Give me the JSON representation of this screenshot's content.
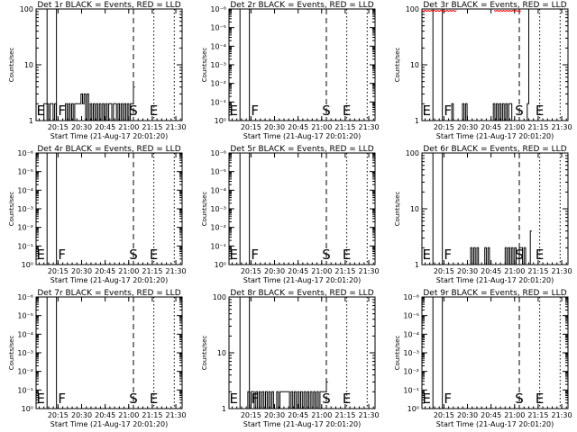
{
  "figure": {
    "background": "#ffffff",
    "event_color": "#000000",
    "lld_color": "#ff0000"
  },
  "chart_data": [
    {
      "type": "line",
      "title": "Det 1r BLACK = Events, RED = LLD",
      "xlabel": "Start Time (21-Aug-17 20:01:20)",
      "ylabel": "Counts/sec",
      "x_tick_labels": [
        "20:15",
        "20:30",
        "20:45",
        "21:00",
        "21:15",
        "21:30"
      ],
      "y_scale": "log",
      "y_tick_labels": [
        "1",
        "10",
        "100"
      ],
      "ylim": [
        1,
        100
      ],
      "markers": [
        "E",
        "F",
        "S",
        "E"
      ],
      "series": [
        {
          "role": "events",
          "color": "#000000",
          "minutes": [
            3,
            63
          ],
          "y": [
            1,
            1,
            2,
            2,
            2,
            1,
            2,
            2,
            1,
            2,
            1,
            1,
            1,
            1,
            1,
            1,
            2,
            1,
            2,
            1,
            2,
            1,
            2,
            2,
            2,
            2,
            3,
            2,
            3,
            1,
            3,
            1,
            2,
            1,
            2,
            1,
            2,
            1,
            2,
            1,
            2,
            1,
            2,
            1,
            2,
            2,
            1,
            2,
            2,
            1,
            2,
            1,
            2,
            1,
            2,
            1,
            2,
            1,
            2,
            2,
            4
          ]
        }
      ]
    },
    {
      "type": "line",
      "title": "Det 2r BLACK = Events, RED = LLD",
      "xlabel": "Start Time (21-Aug-17 20:01:20)",
      "ylabel": "Counts/sec",
      "x_tick_labels": [
        "20:15",
        "20:30",
        "20:45",
        "21:00",
        "21:15",
        "21:30"
      ],
      "y_scale": "log",
      "y_tick_labels": [
        "10⁰",
        "10⁻¹",
        "10⁻²",
        "10⁻³",
        "10⁻⁴",
        "10⁻⁵",
        "10⁻⁶"
      ],
      "ylim": [
        1,
        1000000
      ],
      "markers": [
        "E",
        "F",
        "S",
        "E"
      ],
      "series": []
    },
    {
      "type": "line",
      "title": "Det 3r BLACK = Events, RED = LLD",
      "xlabel": "Start Time (21-Aug-17 20:01:20)",
      "ylabel": "Counts/sec",
      "x_tick_labels": [
        "20:15",
        "20:30",
        "20:45",
        "21:00",
        "21:15",
        "21:30"
      ],
      "y_scale": "log",
      "y_tick_labels": [
        "1",
        "10",
        "100"
      ],
      "ylim": [
        1,
        100
      ],
      "markers": [
        "E",
        "F",
        "S",
        "E"
      ],
      "series": [
        {
          "role": "events",
          "color": "#000000",
          "minutes": [
            18,
            69
          ],
          "y": [
            1,
            2,
            1,
            1,
            1,
            1,
            1,
            1,
            2,
            1,
            2,
            1,
            1,
            1,
            1,
            1,
            1,
            1,
            1,
            1,
            1,
            1,
            1,
            1,
            1,
            1,
            1,
            1,
            2,
            1,
            2,
            1,
            2,
            1,
            2,
            1,
            2,
            1,
            2,
            2,
            1,
            1,
            1,
            1,
            1,
            1,
            1,
            1,
            1,
            1,
            2,
            100
          ]
        },
        {
          "role": "lld",
          "color": "#ff0000",
          "minutes": [
            0,
            22
          ],
          "level": 100
        },
        {
          "role": "lld",
          "color": "#ff0000",
          "minutes": [
            46,
            63
          ],
          "level": 100
        }
      ]
    },
    {
      "type": "line",
      "title": "Det 4r BLACK = Events, RED = LLD",
      "xlabel": "Start Time (21-Aug-17 20:01:20)",
      "ylabel": "Counts/sec",
      "x_tick_labels": [
        "20:15",
        "20:30",
        "20:45",
        "21:00",
        "21:15",
        "21:30"
      ],
      "y_scale": "log",
      "y_tick_labels": [
        "10⁰",
        "10⁻¹",
        "10⁻²",
        "10⁻³",
        "10⁻⁴",
        "10⁻⁵",
        "10⁻⁶"
      ],
      "ylim": [
        1,
        1000000
      ],
      "markers": [
        "E",
        "F",
        "S",
        "E"
      ],
      "series": []
    },
    {
      "type": "line",
      "title": "Det 5r BLACK = Events, RED = LLD",
      "xlabel": "Start Time (21-Aug-17 20:01:20)",
      "ylabel": "Counts/sec",
      "x_tick_labels": [
        "20:15",
        "20:30",
        "20:45",
        "21:00",
        "21:15",
        "21:30"
      ],
      "y_scale": "log",
      "y_tick_labels": [
        "10⁰",
        "10⁻¹",
        "10⁻²",
        "10⁻³",
        "10⁻⁴",
        "10⁻⁵",
        "10⁻⁶"
      ],
      "ylim": [
        1,
        1000000
      ],
      "markers": [
        "E",
        "F",
        "S",
        "E"
      ],
      "series": []
    },
    {
      "type": "line",
      "title": "Det 6r BLACK = Events, RED = LLD",
      "xlabel": "Start Time (21-Aug-17 20:01:20)",
      "ylabel": "Counts/sec",
      "x_tick_labels": [
        "20:15",
        "20:30",
        "20:45",
        "21:00",
        "21:15",
        "21:30"
      ],
      "y_scale": "log",
      "y_tick_labels": [
        "1",
        "10",
        "100"
      ],
      "ylim": [
        1,
        100
      ],
      "markers": [
        "E",
        "F",
        "S",
        "E"
      ],
      "series": [
        {
          "role": "events",
          "color": "#000000",
          "minutes": [
            20,
            70
          ],
          "y": [
            1,
            1,
            1,
            1,
            1,
            1,
            1,
            1,
            1,
            1,
            1,
            2,
            1,
            2,
            1,
            2,
            1,
            1,
            1,
            1,
            2,
            1,
            2,
            1,
            1,
            1,
            1,
            1,
            1,
            1,
            1,
            1,
            1,
            2,
            1,
            2,
            1,
            2,
            1,
            2,
            1,
            1,
            2,
            2,
            1,
            2,
            1,
            1,
            1,
            4
          ]
        }
      ]
    },
    {
      "type": "line",
      "title": "Det 7r BLACK = Events, RED = LLD",
      "xlabel": "Start Time (21-Aug-17 20:01:20)",
      "ylabel": "Counts/sec",
      "x_tick_labels": [
        "20:15",
        "20:30",
        "20:45",
        "21:00",
        "21:15",
        "21:30"
      ],
      "y_scale": "log",
      "y_tick_labels": [
        "10⁰",
        "10⁻¹",
        "10⁻²",
        "10⁻³",
        "10⁻⁴",
        "10⁻⁵",
        "10⁻⁶"
      ],
      "ylim": [
        1,
        1000000
      ],
      "markers": [
        "E",
        "F",
        "S",
        "E"
      ],
      "series": []
    },
    {
      "type": "line",
      "title": "Det 8r BLACK = Events, RED = LLD",
      "xlabel": "Start Time (21-Aug-17 20:01:20)",
      "ylabel": "Counts/sec",
      "x_tick_labels": [
        "20:15",
        "20:30",
        "20:45",
        "21:00",
        "21:15",
        "21:30"
      ],
      "y_scale": "log",
      "y_tick_labels": [
        "1",
        "10",
        "100"
      ],
      "ylim": [
        1,
        100
      ],
      "markers": [
        "E",
        "F",
        "S",
        "E"
      ],
      "series": [
        {
          "role": "events",
          "color": "#000000",
          "minutes": [
            11,
            63
          ],
          "y": [
            1,
            2,
            1,
            2,
            2,
            1,
            2,
            1,
            2,
            1,
            2,
            1,
            2,
            1,
            2,
            1,
            2,
            1,
            1,
            2,
            1,
            2,
            2,
            2,
            2,
            2,
            2,
            1,
            2,
            1,
            2,
            1,
            2,
            1,
            2,
            1,
            2,
            1,
            2,
            1,
            2,
            1,
            2,
            1,
            2,
            1,
            2,
            2,
            2,
            2,
            3
          ]
        }
      ]
    },
    {
      "type": "line",
      "title": "Det 9r BLACK = Events, RED = LLD",
      "xlabel": "Start Time (21-Aug-17 20:01:20)",
      "ylabel": "Counts/sec",
      "x_tick_labels": [
        "20:15",
        "20:30",
        "20:45",
        "21:00",
        "21:15",
        "21:30"
      ],
      "y_scale": "log",
      "y_tick_labels": [
        "10⁰",
        "10⁻¹",
        "10⁻²",
        "10⁻³",
        "10⁻⁴",
        "10⁻⁵",
        "10⁻⁶"
      ],
      "ylim": [
        1,
        1000000
      ],
      "markers": [
        "E",
        "F",
        "S",
        "E"
      ],
      "series": []
    }
  ]
}
